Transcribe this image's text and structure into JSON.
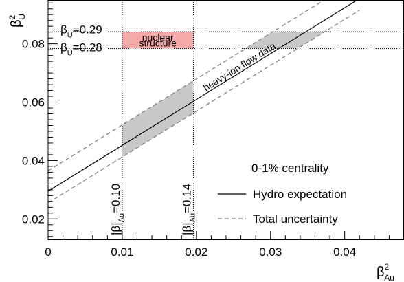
{
  "chart_data": {
    "type": "line",
    "xlabel": "β²Au",
    "ylabel": "β²U",
    "xlim": [
      0,
      0.048
    ],
    "ylim": [
      0.013,
      0.095
    ],
    "x_ticks": [
      0,
      0.01,
      0.02,
      0.03,
      0.04
    ],
    "x_tick_labels": [
      "0",
      "0.01",
      "0.02",
      "0.03",
      "0.04"
    ],
    "y_ticks": [
      0.02,
      0.04,
      0.06,
      0.08
    ],
    "y_tick_labels": [
      "0.02",
      "0.04",
      "0.06",
      "0.08"
    ],
    "series": [
      {
        "name": "Hydro expectation",
        "style": "solid",
        "color": "#000000",
        "x": [
          0,
          0.042
        ],
        "y": [
          0.0295,
          0.0955
        ]
      },
      {
        "name": "Total uncertainty",
        "style": "dashed",
        "color": "#808080",
        "x": [
          0,
          0.042
        ],
        "y": [
          0.0365,
          0.1025
        ]
      },
      {
        "name": "Total uncertainty",
        "style": "dashed",
        "color": "#808080",
        "x": [
          0,
          0.042
        ],
        "y": [
          0.0255,
          0.0915
        ]
      }
    ],
    "bands": [
      {
        "kind": "vertical-slice",
        "x_range": [
          0.01,
          0.0196
        ],
        "color": "#c8c8c8"
      },
      {
        "kind": "horizontal-slice",
        "y_range": [
          0.0784,
          0.0841
        ],
        "color": "#c8c8c8"
      }
    ],
    "nuclear_box": {
      "x_range": [
        0.01,
        0.0196
      ],
      "y_range": [
        0.0784,
        0.0841
      ],
      "color": "#f4a9a9",
      "label_lines": [
        "nuclear",
        "structure"
      ]
    },
    "reference_lines": {
      "vertical": [
        0.01,
        0.0196
      ],
      "horizontal": [
        0.0784,
        0.0841
      ]
    },
    "annotations": {
      "beta_u_029": {
        "main": "β",
        "sub": "U",
        "value": "=0.29"
      },
      "beta_u_028": {
        "main": "β",
        "sub": "U",
        "value": "=0.28"
      },
      "beta_au_010": {
        "main": "|β|",
        "sub": "Au",
        "value": "=0.10"
      },
      "beta_au_014": {
        "main": "|β|",
        "sub": "Au",
        "value": "=0.14"
      },
      "flow_label": "heavy-ion flow data"
    },
    "legend": {
      "position": "bottom-right",
      "title": "0-1% centrality",
      "entries": [
        {
          "label": "Hydro expectation",
          "style": "solid"
        },
        {
          "label": "Total uncertainty",
          "style": "dashed"
        }
      ]
    }
  }
}
